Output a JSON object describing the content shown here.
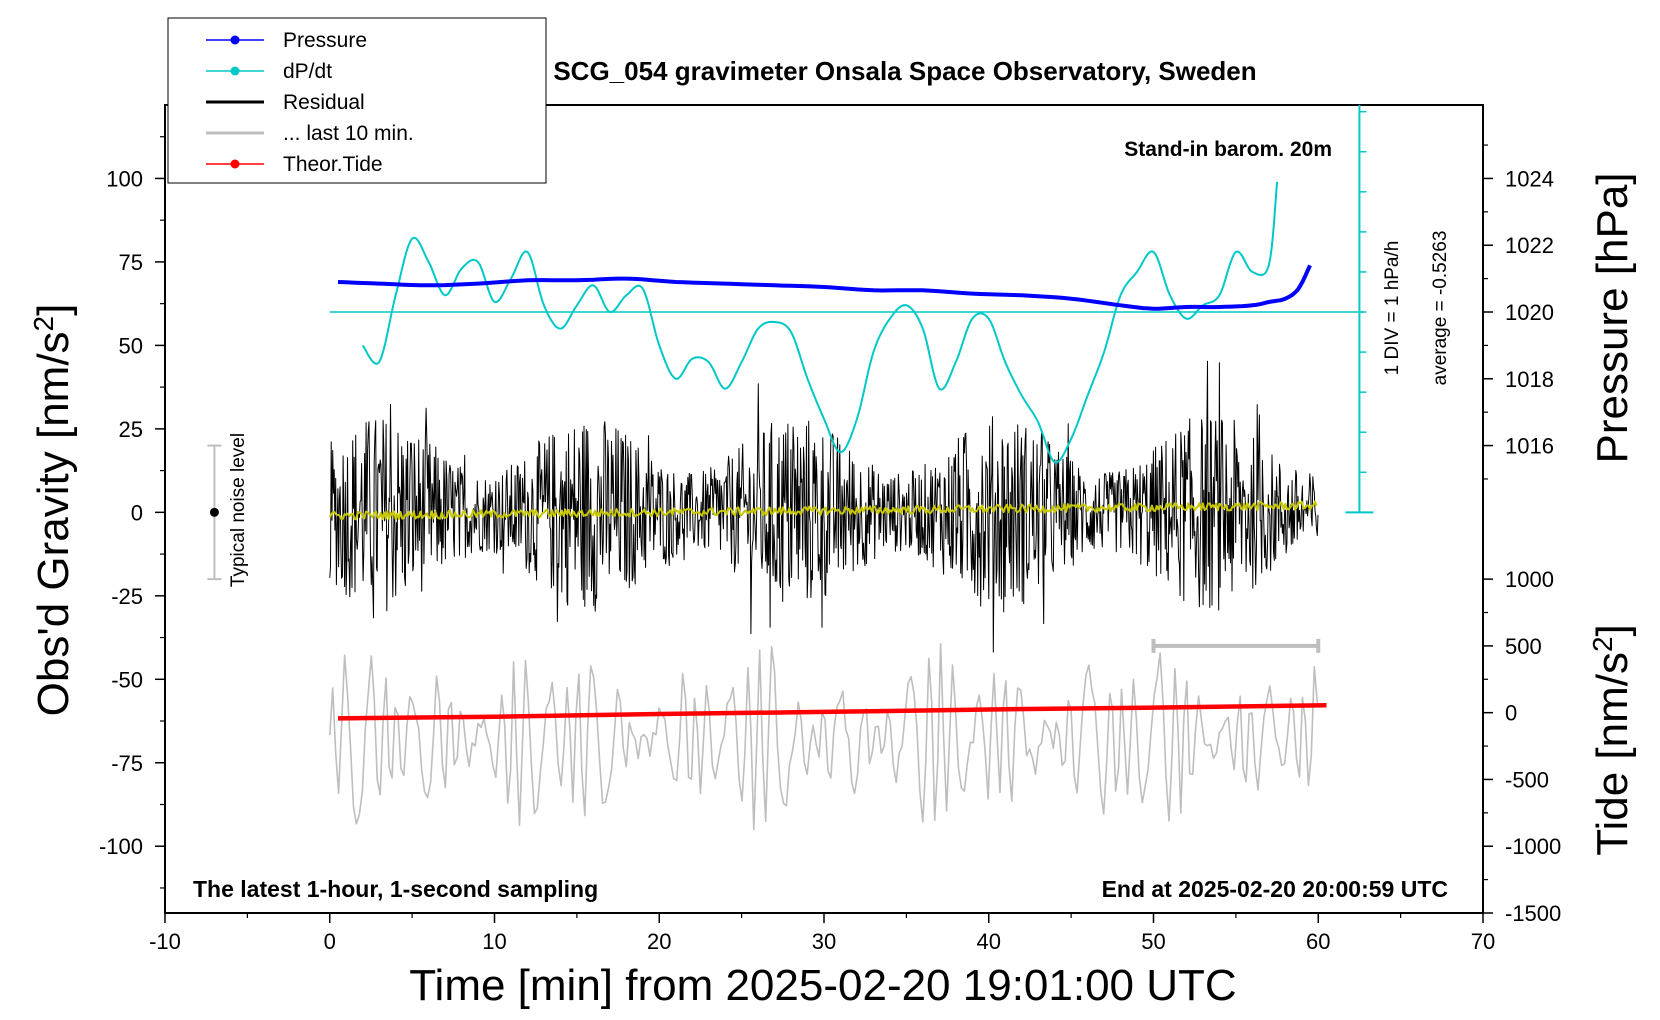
{
  "chart_data": {
    "type": "line",
    "title": "SCG_054 gravimeter Onsala Space Observatory, Sweden",
    "subtitle_right": "Stand-in barom. 20m",
    "footer_left": "The latest 1-hour, 1-second sampling",
    "footer_right": "End at 2025-02-20 20:00:59 UTC",
    "xlabel": "Time [min] from 2025-02-20 19:01:00 UTC",
    "ylabel_left": "Obs'd Gravity [nm/s",
    "ylabel_left_sup": "2",
    "ylabel_left_end": "]",
    "ylabel_right_top": "Pressure [hPa]",
    "ylabel_right_bottom": "Tide [nm/s",
    "ylabel_right_bottom_sup": "2",
    "ylabel_right_bottom_end": "]",
    "xlim": [
      -10,
      70
    ],
    "ylim_left": [
      -120,
      122
    ],
    "x_ticks": [
      "-10",
      "0",
      "10",
      "20",
      "30",
      "40",
      "50",
      "60",
      "70"
    ],
    "y_left_ticks": [
      "100",
      "75",
      "50",
      "25",
      "0",
      "-25",
      "-50",
      "-75",
      "-100"
    ],
    "y_pressure_ticks": [
      "1024",
      "1022",
      "1020",
      "1018",
      "1016"
    ],
    "y_tide_ticks": [
      "1000",
      "500",
      "0",
      "-500",
      "-1000",
      "-1500"
    ],
    "legend": [
      {
        "label": "Pressure",
        "color": "#0000ff",
        "marker": true
      },
      {
        "label": "dP/dt",
        "color": "#00c8c8",
        "marker": true
      },
      {
        "label": "Residual",
        "color": "#000000",
        "marker": false
      },
      {
        "label": "... last 10 min.",
        "color": "#bebebe",
        "marker": false
      },
      {
        "label": "Theor.Tide",
        "color": "#ff0000",
        "marker": true
      }
    ],
    "noise_label": "Typical noise level",
    "noise_level": 20,
    "dpdt_scale_label": "1 DIV = 1 hPa/h",
    "dpdt_average_label": "average = -0.5263",
    "dpdt_zero_left_units": 60,
    "series": [
      {
        "name": "Pressure",
        "units": "hPa",
        "color": "#0000ff",
        "x": [
          0.5,
          3,
          6,
          9,
          12,
          15,
          18,
          21,
          24,
          27,
          30,
          33,
          36,
          39,
          42,
          45,
          48,
          50,
          52,
          54,
          56,
          57,
          58,
          58.8,
          59.5
        ],
        "values": [
          1020.9,
          1020.85,
          1020.8,
          1020.85,
          1020.95,
          1020.95,
          1021.0,
          1020.9,
          1020.85,
          1020.8,
          1020.75,
          1020.65,
          1020.65,
          1020.55,
          1020.5,
          1020.4,
          1020.2,
          1020.1,
          1020.15,
          1020.15,
          1020.2,
          1020.3,
          1020.4,
          1020.7,
          1021.4
        ]
      },
      {
        "name": "dP/dt",
        "units": "nm/s2 (display)",
        "color": "#00c8c8",
        "x": [
          2,
          3,
          4,
          5,
          6,
          7,
          8,
          9,
          10,
          11,
          12,
          13,
          14,
          15,
          16,
          17,
          18,
          19,
          20,
          21,
          22,
          23,
          24,
          25,
          26,
          27,
          28,
          29,
          30,
          31,
          32,
          33,
          34,
          35,
          36,
          37,
          38,
          39,
          40,
          41,
          42,
          43,
          44,
          45,
          46,
          47,
          48,
          49,
          50,
          51,
          52,
          53,
          54,
          55,
          56,
          57,
          57.5
        ],
        "values": [
          50,
          45,
          65,
          82,
          75,
          65,
          73,
          75,
          63,
          70,
          78,
          62,
          55,
          62,
          68,
          60,
          65,
          67,
          50,
          40,
          46,
          45,
          37,
          45,
          55,
          57,
          54,
          40,
          28,
          18,
          28,
          48,
          58,
          62,
          55,
          37,
          45,
          58,
          58,
          45,
          35,
          27,
          15,
          22,
          35,
          48,
          65,
          72,
          78,
          65,
          58,
          62,
          65,
          78,
          72,
          74,
          99
        ]
      },
      {
        "name": "Theor.Tide",
        "units": "nm/s2",
        "color": "#ff0000",
        "x": [
          0.5,
          10,
          20,
          30,
          40,
          50,
          60.5
        ],
        "values": [
          -43,
          -30,
          -10,
          6,
          24,
          38,
          55
        ]
      },
      {
        "name": "Residual",
        "units": "nm/s2",
        "color": "#000000",
        "x_range": [
          0,
          60
        ],
        "envelope": 30
      },
      {
        "name": "... last 10 min.",
        "color": "#bebebe",
        "x_range": [
          0,
          60
        ],
        "center": -68,
        "amplitude": 28,
        "bar_x": [
          50,
          60
        ],
        "bar_y": -40
      }
    ]
  }
}
